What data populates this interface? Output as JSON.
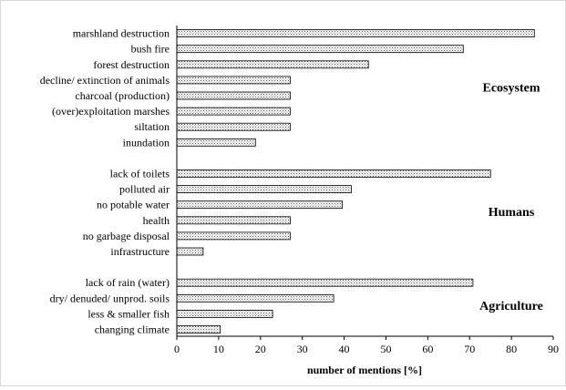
{
  "chart_data": {
    "type": "bar",
    "orientation": "horizontal",
    "xlabel": "number  of mentions [%]",
    "xlim": [
      0,
      90
    ],
    "xticks": [
      0,
      10,
      20,
      30,
      40,
      50,
      60,
      70,
      80,
      90
    ],
    "grid": false,
    "groups": [
      {
        "name": "Ecosystem",
        "categories": [
          "marshland destruction",
          "bush fire",
          "forest destruction",
          "decline/ extinction of animals",
          "charcoal (production)",
          "(over)exploitation marshes",
          "siltation",
          "inundation"
        ],
        "values": [
          85.5,
          68.5,
          45.8,
          27.1,
          27.1,
          27.1,
          27.1,
          18.8
        ]
      },
      {
        "name": "Humans",
        "categories": [
          "lack of toilets",
          "polluted air",
          "no potable water",
          "health",
          "no garbage disposal",
          "infrastructure"
        ],
        "values": [
          75,
          41.7,
          39.6,
          27.1,
          27.1,
          6.3
        ]
      },
      {
        "name": "Agriculture",
        "categories": [
          "lack of rain (water)",
          "dry/ denuded/ unprod. soils",
          "less & smaller fish",
          "changing climate"
        ],
        "values": [
          70.8,
          37.5,
          22.9,
          10.4
        ]
      }
    ],
    "bar_fill": "dotted-pattern",
    "bar_color": "#000000"
  }
}
